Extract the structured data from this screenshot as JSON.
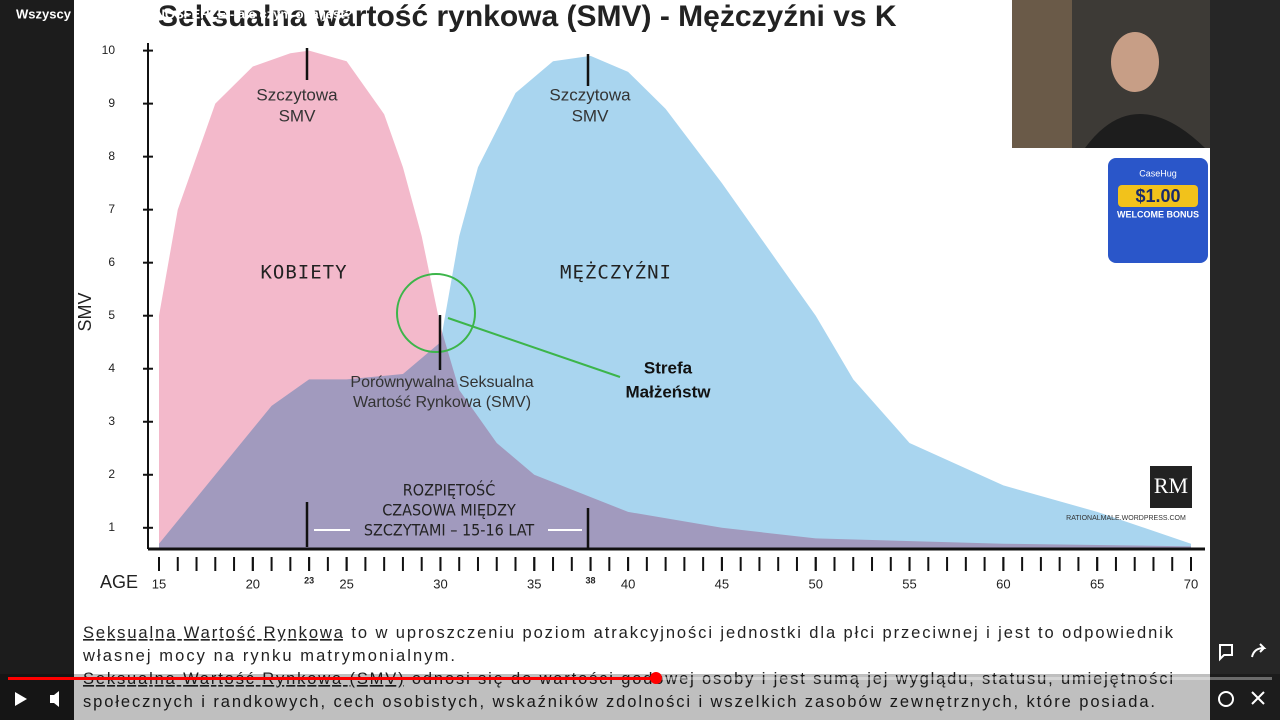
{
  "video_title": "Wszyscy żyjemy w MANOSFERZE - ale czym ona jest?",
  "chart_data": {
    "type": "area",
    "title": "Seksualna wartość rynkowa (SMV) - Mężczyźni vs K",
    "y_label": "SMV",
    "x_label": "AGE",
    "xlim": [
      15,
      70
    ],
    "ylim": [
      0.6,
      10.2
    ],
    "yticks": [
      1,
      2,
      3,
      4,
      5,
      6,
      7,
      8,
      9,
      10
    ],
    "xticks": [
      15,
      20,
      23,
      25,
      30,
      35,
      38,
      40,
      45,
      50,
      55,
      60,
      65,
      70
    ],
    "series": [
      {
        "name": "KOBIETY",
        "color": "#f3b9cb",
        "x": [
          15,
          16,
          18,
          20,
          22,
          23,
          25,
          27,
          28,
          29,
          30,
          31,
          33,
          35,
          40,
          45,
          50,
          60,
          70
        ],
        "values": [
          5,
          7,
          9,
          9.7,
          9.95,
          10,
          9.8,
          8.8,
          7.8,
          6.5,
          4.8,
          3.6,
          2.6,
          2,
          1.3,
          1,
          0.8,
          0.7,
          0.65
        ]
      },
      {
        "name": "MĘŻCZYŹNI",
        "color": "#a9d5ef",
        "x": [
          15,
          18,
          21,
          23,
          25,
          28,
          29,
          30,
          31,
          32,
          34,
          36,
          38,
          40,
          42,
          45,
          48,
          50,
          52,
          55,
          60,
          65,
          70
        ],
        "values": [
          0.7,
          2,
          3.3,
          3.8,
          3.8,
          3.9,
          4.2,
          4.5,
          6.5,
          7.8,
          9.2,
          9.8,
          9.9,
          9.6,
          8.9,
          7.5,
          6,
          5,
          3.8,
          2.6,
          1.8,
          1.3,
          0.7
        ]
      }
    ],
    "annotations": [
      {
        "lines": [
          "Szczytowa",
          "SMV"
        ]
      },
      {
        "lines": [
          "Szczytowa",
          "SMV"
        ]
      },
      {
        "lines": [
          "Porównywalna Seksualna",
          "Wartość Rynkowa (SMV)"
        ]
      },
      {
        "lines": [
          "Strefa",
          "Małżeństw"
        ]
      },
      {
        "lines": [
          "ROZPIĘTOŚĆ",
          "CZASOWA MIĘDZY",
          "SZCZYTAMI – 15-16 LAT"
        ]
      },
      {
        "lines": [
          "RM"
        ]
      },
      {
        "lines": [
          "RATIONALMALE.WORDPRESS.COM"
        ]
      }
    ]
  },
  "caption": [
    [
      "Seksualna Wartość Rynkowa",
      " to w uproszczeniu poziom atrakcyjności jednostki dla płci przeciwnej i jest to odpowiednik"
    ],
    [
      "własnej mocy na rynku matrymonialnym."
    ],
    [
      "Seksualna Wartość Rynkowa (SMV)",
      " odnosi się do wartości godowej osoby i jest sumą jej wyglądu, statusu, umiejętności"
    ],
    [
      "społecznych i randkowych, cech osobistych, wskaźników zdolności i wszelkich zasobów zewnętrznych, które posiada."
    ]
  ],
  "ad": {
    "brand": "CaseHug",
    "amount": "$1.00",
    "text": "WELCOME BONUS"
  }
}
